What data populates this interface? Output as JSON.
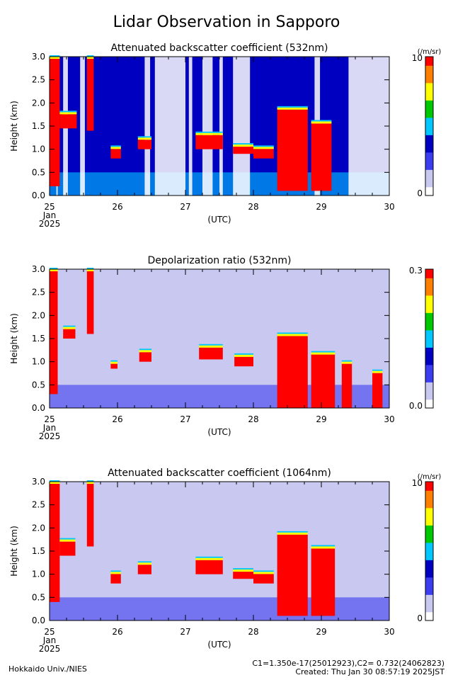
{
  "title": "Lidar Observation in Sapporo",
  "footer": {
    "left": "Hokkaido Univ./NIES",
    "calib": "C1=1.350e-17(25012923),C2= 0.732(24062823)",
    "created": "Created: Thu Jan 30 08:57:19 2025JST"
  },
  "colors": {
    "scale": [
      "#ffffff",
      "#c8c8f0",
      "#3c3cf0",
      "#0000c0",
      "#00c8ff",
      "#00c800",
      "#ffff00",
      "#ff8000",
      "#ff0000"
    ],
    "no_data": "#ffffff"
  },
  "chart_data": [
    {
      "type": "heatmap",
      "title": "Attenuated backscatter coefficient (532nm)",
      "ylabel": "Height (km)",
      "xlabel": "(UTC)",
      "xticks": [
        "25",
        "26",
        "27",
        "28",
        "29",
        "30"
      ],
      "date_sub": [
        "Jan",
        "2025"
      ],
      "xlim": [
        25,
        30
      ],
      "ylim": [
        0,
        3
      ],
      "yticks": [
        "0.0",
        "0.5",
        "1.0",
        "1.5",
        "2.0",
        "2.5",
        "3.0"
      ],
      "colorbar": {
        "unit": "(/m/sr)",
        "max_label": "10",
        "min_label": "0"
      },
      "background_level": 0.36,
      "cloud_layers": [
        {
          "t": [
            25.0,
            25.15
          ],
          "base": 0.2,
          "top": 3.0
        },
        {
          "t": [
            25.15,
            25.4
          ],
          "base": 1.45,
          "top": 1.8
        },
        {
          "t": [
            25.55,
            25.65
          ],
          "base": 1.4,
          "top": 3.0
        },
        {
          "t": [
            25.9,
            26.05
          ],
          "base": 0.8,
          "top": 1.05
        },
        {
          "t": [
            26.3,
            26.5
          ],
          "base": 1.0,
          "top": 1.25
        },
        {
          "t": [
            27.15,
            27.55
          ],
          "base": 1.0,
          "top": 1.35
        },
        {
          "t": [
            27.7,
            28.0
          ],
          "base": 0.9,
          "top": 1.1
        },
        {
          "t": [
            28.0,
            28.3
          ],
          "base": 0.8,
          "top": 1.05
        },
        {
          "t": [
            28.35,
            28.8
          ],
          "base": 0.1,
          "top": 1.9
        },
        {
          "t": [
            28.85,
            29.15
          ],
          "base": 0.1,
          "top": 1.6
        }
      ],
      "no_signal_spans": [
        [
          25.1,
          25.12
        ],
        [
          25.2,
          25.27
        ],
        [
          25.45,
          25.52
        ],
        [
          26.4,
          26.48
        ],
        [
          26.55,
          27.0
        ],
        [
          27.05,
          27.1
        ],
        [
          27.25,
          27.4
        ],
        [
          27.5,
          27.55
        ],
        [
          27.7,
          27.95
        ],
        [
          28.9,
          28.98
        ],
        [
          29.4,
          30.0
        ]
      ]
    },
    {
      "type": "heatmap",
      "title": "Depolarization ratio (532nm)",
      "ylabel": "Height (km)",
      "xlabel": "(UTC)",
      "xticks": [
        "25",
        "26",
        "27",
        "28",
        "29",
        "30"
      ],
      "date_sub": [
        "Jan",
        "2025"
      ],
      "xlim": [
        25,
        30
      ],
      "ylim": [
        0,
        3
      ],
      "yticks": [
        "0.0",
        "0.5",
        "1.0",
        "1.5",
        "2.0",
        "2.5",
        "3.0"
      ],
      "colorbar": {
        "unit": "",
        "max_label": "0.3",
        "min_label": "0.0"
      },
      "background_level": 0.18,
      "cloud_layers": [
        {
          "t": [
            25.0,
            25.12
          ],
          "base": 0.3,
          "top": 3.0
        },
        {
          "t": [
            25.2,
            25.38
          ],
          "base": 1.5,
          "top": 1.75
        },
        {
          "t": [
            25.55,
            25.65
          ],
          "base": 1.6,
          "top": 3.0
        },
        {
          "t": [
            25.9,
            26.0
          ],
          "base": 0.85,
          "top": 1.0
        },
        {
          "t": [
            26.32,
            26.5
          ],
          "base": 1.0,
          "top": 1.25
        },
        {
          "t": [
            27.2,
            27.55
          ],
          "base": 1.05,
          "top": 1.35
        },
        {
          "t": [
            27.72,
            28.0
          ],
          "base": 0.9,
          "top": 1.15
        },
        {
          "t": [
            28.35,
            28.8
          ],
          "base": 0.0,
          "top": 1.6
        },
        {
          "t": [
            28.85,
            29.2
          ],
          "base": 0.0,
          "top": 1.2
        },
        {
          "t": [
            29.3,
            29.45
          ],
          "base": 0.0,
          "top": 1.0
        },
        {
          "t": [
            29.75,
            29.9
          ],
          "base": 0.0,
          "top": 0.8
        }
      ],
      "no_signal_spans": []
    },
    {
      "type": "heatmap",
      "title": "Attenuated backscatter coefficient (1064nm)",
      "ylabel": "Height (km)",
      "xlabel": "(UTC)",
      "xticks": [
        "25",
        "26",
        "27",
        "28",
        "29",
        "30"
      ],
      "date_sub": [
        "Jan",
        "2025"
      ],
      "xlim": [
        25,
        30
      ],
      "ylim": [
        0,
        3
      ],
      "yticks": [
        "0.0",
        "0.5",
        "1.0",
        "1.5",
        "2.0",
        "2.5",
        "3.0"
      ],
      "colorbar": {
        "unit": "(/m/sr)",
        "max_label": "10",
        "min_label": "0"
      },
      "background_level": 0.12,
      "cloud_layers": [
        {
          "t": [
            25.0,
            25.15
          ],
          "base": 0.4,
          "top": 3.0
        },
        {
          "t": [
            25.15,
            25.38
          ],
          "base": 1.4,
          "top": 1.75
        },
        {
          "t": [
            25.55,
            25.65
          ],
          "base": 1.6,
          "top": 3.0
        },
        {
          "t": [
            25.9,
            26.05
          ],
          "base": 0.8,
          "top": 1.05
        },
        {
          "t": [
            26.3,
            26.5
          ],
          "base": 1.0,
          "top": 1.25
        },
        {
          "t": [
            27.15,
            27.55
          ],
          "base": 1.0,
          "top": 1.35
        },
        {
          "t": [
            27.7,
            28.0
          ],
          "base": 0.9,
          "top": 1.1
        },
        {
          "t": [
            28.0,
            28.3
          ],
          "base": 0.8,
          "top": 1.05
        },
        {
          "t": [
            28.35,
            28.8
          ],
          "base": 0.1,
          "top": 1.9
        },
        {
          "t": [
            28.85,
            29.2
          ],
          "base": 0.1,
          "top": 1.6
        }
      ],
      "no_signal_spans": []
    }
  ]
}
